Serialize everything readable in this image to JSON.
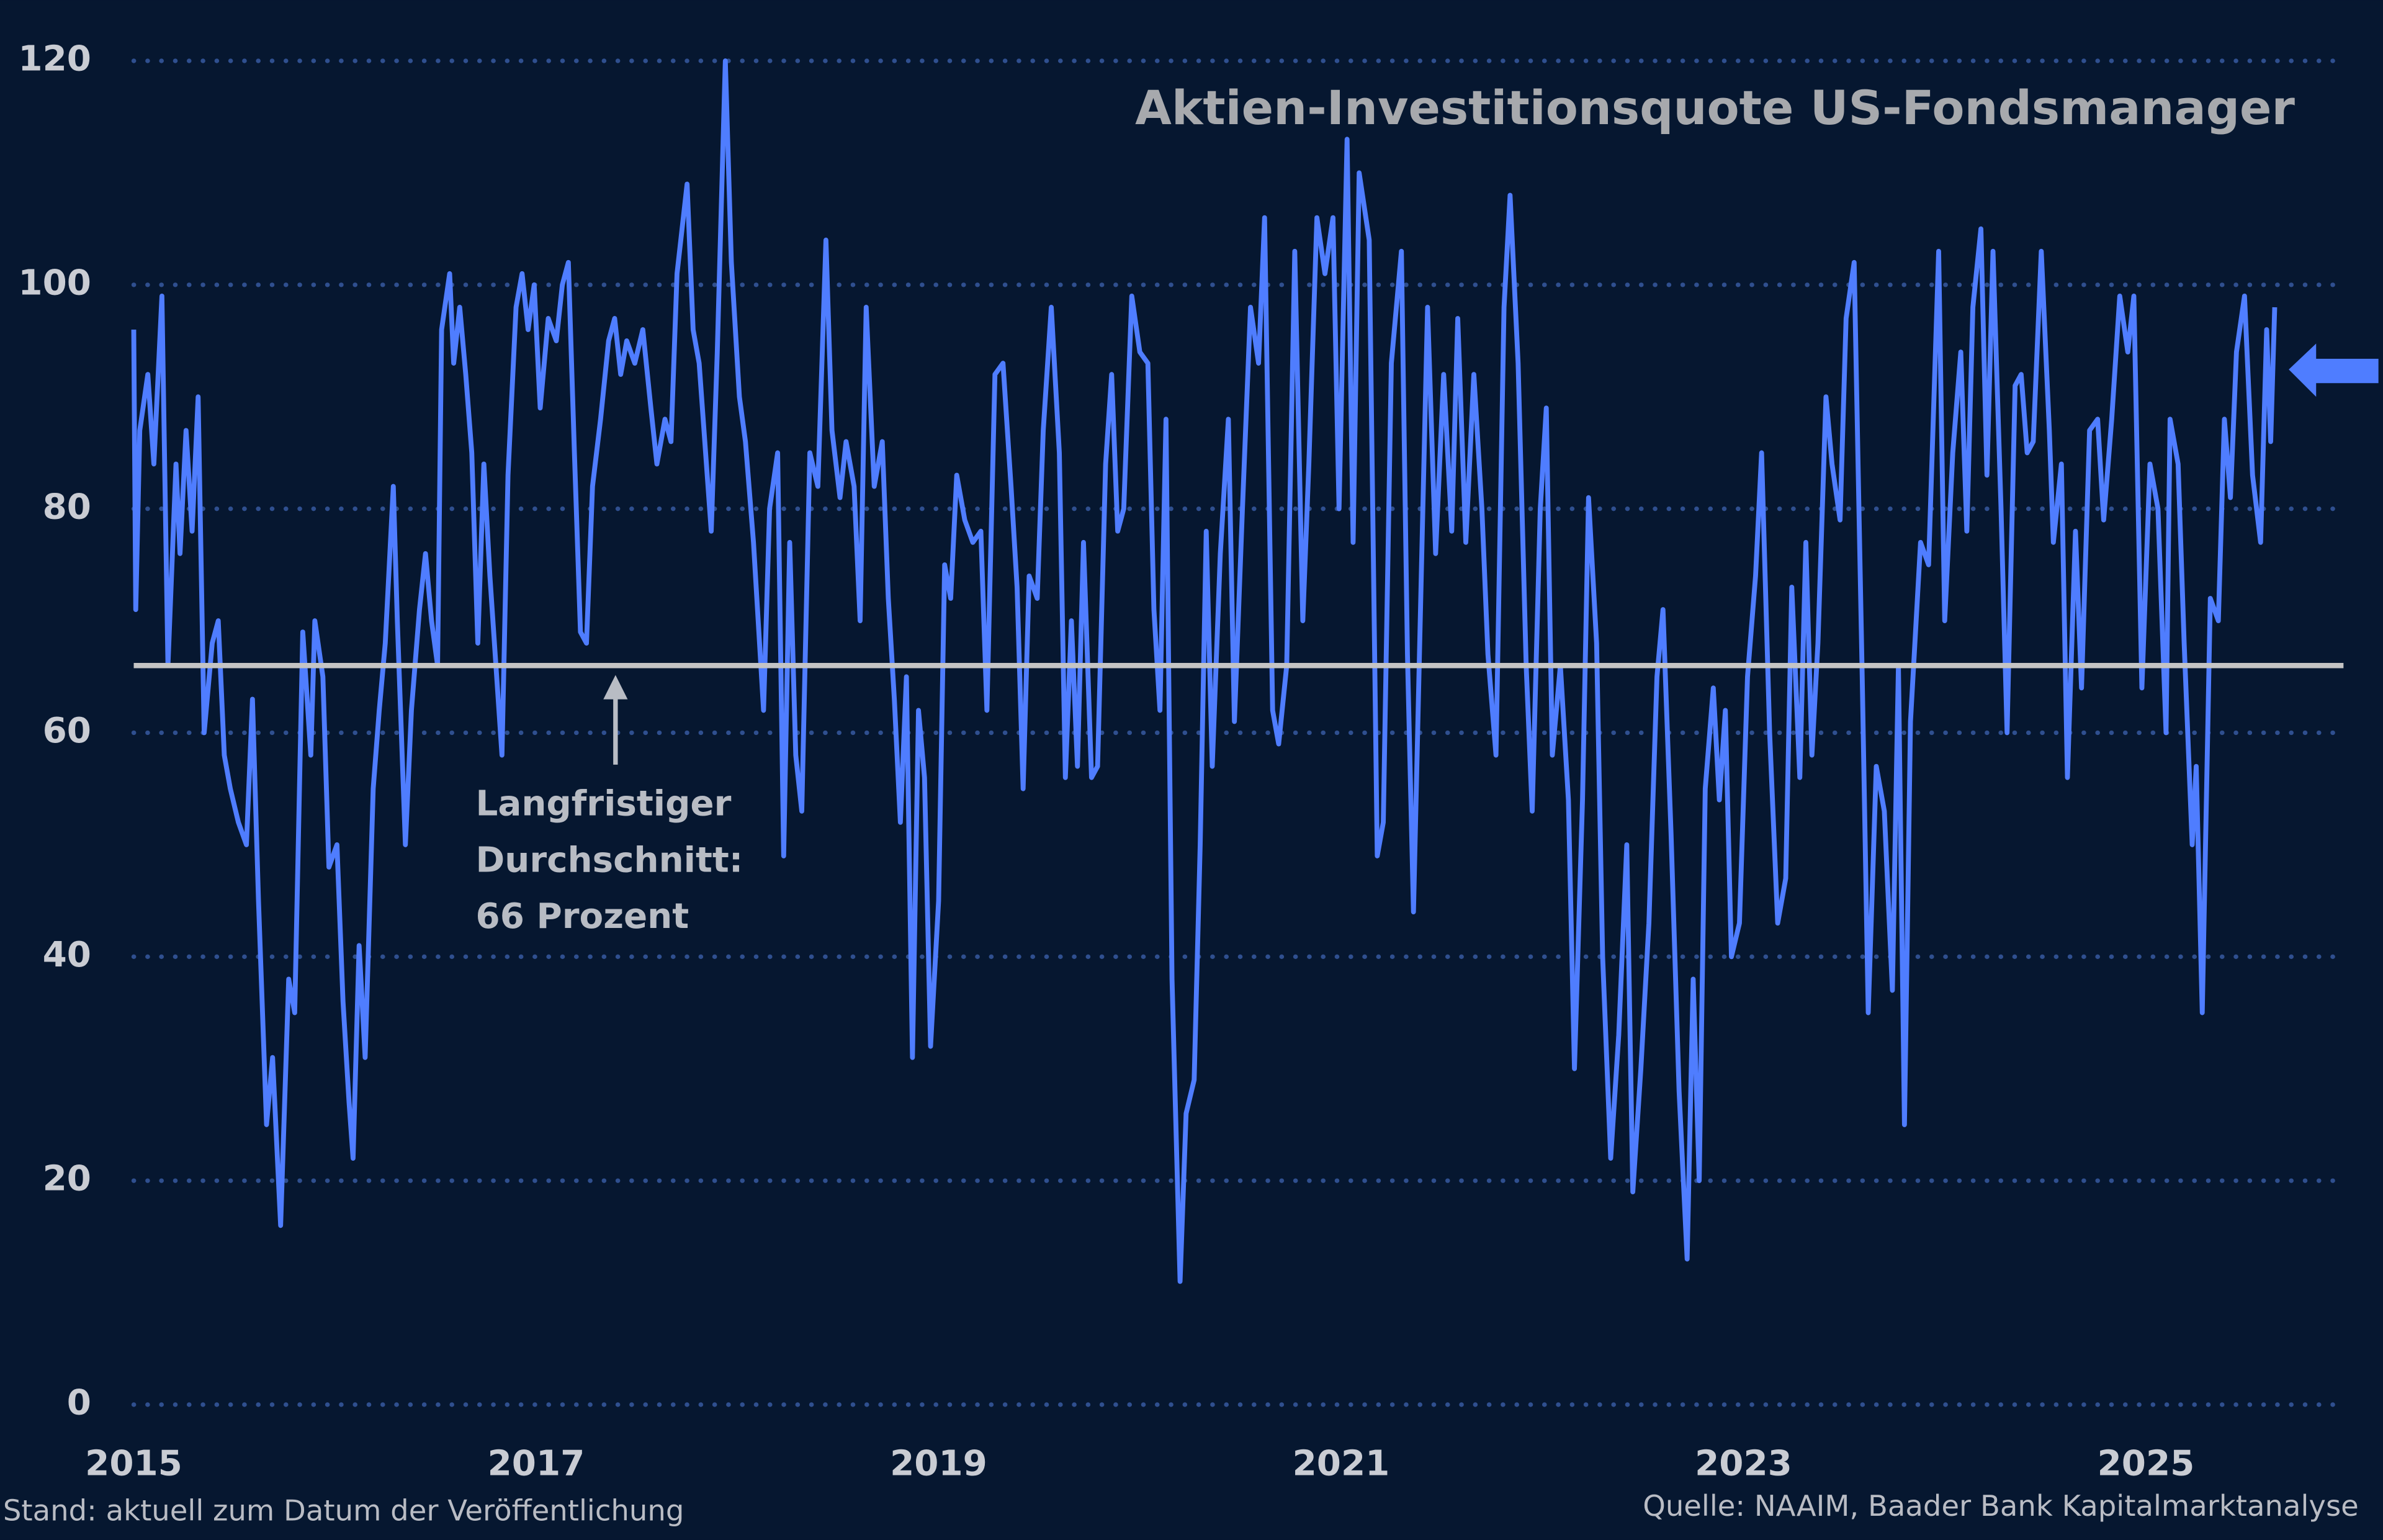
{
  "chart_data": {
    "type": "line",
    "title": "Aktien-Investitionsquote US-Fondsmanager",
    "annotation": [
      "Langfristiger",
      "Durchschnitt:",
      "66 Prozent"
    ],
    "average": 66,
    "footnote_left": "Stand: aktuell zum Datum der Veröffentlichung",
    "footnote_right": "Quelle: NAAIM, Baader Bank Kapitalmarktanalyse",
    "xlim": [
      2015,
      2026
    ],
    "xticks": [
      2015,
      2017,
      2019,
      2021,
      2023,
      2025
    ],
    "ylim": [
      0,
      120
    ],
    "yticks": [
      0,
      20,
      40,
      60,
      80,
      100,
      120
    ],
    "grid": true,
    "series": [
      {
        "color": "#4f7dff",
        "x": [
          2015.0,
          2015.01,
          2015.03,
          2015.07,
          2015.1,
          2015.14,
          2015.17,
          2015.21,
          2015.23,
          2015.26,
          2015.29,
          2015.32,
          2015.35,
          2015.39,
          2015.42,
          2015.45,
          2015.48,
          2015.52,
          2015.56,
          2015.59,
          2015.62,
          2015.66,
          2015.69,
          2015.73,
          2015.77,
          2015.8,
          2015.84,
          2015.88,
          2015.9,
          2015.94,
          2015.97,
          2016.01,
          2016.04,
          2016.07,
          2016.09,
          2016.12,
          2016.15,
          2016.19,
          2016.22,
          2016.25,
          2016.29,
          2016.31,
          2016.35,
          2016.38,
          2016.42,
          2016.45,
          2016.48,
          2016.51,
          2016.53,
          2016.57,
          2016.59,
          2016.62,
          2016.65,
          2016.68,
          2016.71,
          2016.74,
          2016.77,
          2016.8,
          2016.83,
          2016.86,
          2016.9,
          2016.93,
          2016.96,
          2016.99,
          2017.02,
          2017.06,
          2017.1,
          2017.13,
          2017.16,
          2017.19,
          2017.22,
          2017.25,
          2017.28,
          2017.32,
          2017.36,
          2017.39,
          2017.42,
          2017.45,
          2017.49,
          2017.53,
          2017.57,
          2017.6,
          2017.64,
          2017.67,
          2017.7,
          2017.75,
          2017.78,
          2017.81,
          2017.85,
          2017.87,
          2017.9,
          2017.94,
          2017.97,
          2018.01,
          2018.04,
          2018.08,
          2018.13,
          2018.16,
          2018.2,
          2018.23,
          2018.26,
          2018.29,
          2018.32,
          2018.36,
          2018.4,
          2018.44,
          2018.47,
          2018.51,
          2018.54,
          2018.58,
          2018.61,
          2018.64,
          2018.68,
          2018.72,
          2018.75,
          2018.78,
          2018.81,
          2018.84,
          2018.87,
          2018.9,
          2018.93,
          2018.96,
          2019.0,
          2019.03,
          2019.06,
          2019.09,
          2019.13,
          2019.17,
          2019.21,
          2019.24,
          2019.28,
          2019.32,
          2019.36,
          2019.39,
          2019.42,
          2019.45,
          2019.49,
          2019.52,
          2019.56,
          2019.6,
          2019.63,
          2019.66,
          2019.69,
          2019.72,
          2019.76,
          2019.79,
          2019.83,
          2019.86,
          2019.89,
          2019.92,
          2019.96,
          2020.0,
          2020.04,
          2020.07,
          2020.1,
          2020.13,
          2020.16,
          2020.2,
          2020.23,
          2020.27,
          2020.3,
          2020.33,
          2020.36,
          2020.4,
          2020.44,
          2020.47,
          2020.51,
          2020.55,
          2020.59,
          2020.62,
          2020.66,
          2020.69,
          2020.73,
          2020.77,
          2020.81,
          2020.84,
          2020.88,
          2020.92,
          2020.96,
          2020.99,
          2021.03,
          2021.06,
          2021.09,
          2021.14,
          2021.18,
          2021.21,
          2021.25,
          2021.3,
          2021.33,
          2021.36,
          2021.4,
          2021.43,
          2021.47,
          2021.51,
          2021.55,
          2021.58,
          2021.62,
          2021.66,
          2021.7,
          2021.73,
          2021.77,
          2021.81,
          2021.84,
          2021.88,
          2021.92,
          2021.95,
          2021.99,
          2022.02,
          2022.05,
          2022.09,
          2022.13,
          2022.16,
          2022.2,
          2022.23,
          2022.27,
          2022.3,
          2022.34,
          2022.38,
          2022.42,
          2022.45,
          2022.49,
          2022.53,
          2022.57,
          2022.6,
          2022.64,
          2022.68,
          2022.72,
          2022.75,
          2022.78,
          2022.81,
          2022.85,
          2022.88,
          2022.91,
          2022.94,
          2022.98,
          2023.02,
          2023.06,
          2023.09,
          2023.13,
          2023.17,
          2023.21,
          2023.24,
          2023.28,
          2023.31,
          2023.34,
          2023.37,
          2023.41,
          2023.44,
          2023.48,
          2023.51,
          2023.55,
          2023.59,
          2023.62,
          2023.66,
          2023.7,
          2023.74,
          2023.77,
          2023.8,
          2023.83,
          2023.88,
          2023.92,
          2023.97,
          2024.0,
          2024.04,
          2024.08,
          2024.11,
          2024.14,
          2024.18,
          2024.21,
          2024.24,
          2024.28,
          2024.31,
          2024.35,
          2024.38,
          2024.41,
          2024.44,
          2024.48,
          2024.52,
          2024.54,
          2024.58,
          2024.61,
          2024.65,
          2024.68,
          2024.72,
          2024.76,
          2024.79,
          2024.83,
          2024.87,
          2024.91,
          2024.94,
          2024.98,
          2025.02,
          2025.06,
          2025.1,
          2025.12,
          2025.16,
          2025.19,
          2025.23,
          2025.25,
          2025.28,
          2025.32,
          2025.36,
          2025.39,
          2025.42,
          2025.45,
          2025.49,
          2025.53,
          2025.57,
          2025.6,
          2025.62,
          2025.64
        ],
        "values": [
          96,
          71,
          87,
          92,
          84,
          99,
          66,
          84,
          76,
          87,
          78,
          90,
          60,
          68,
          70,
          58,
          55,
          52,
          50,
          63,
          45,
          25,
          31,
          16,
          38,
          35,
          69,
          58,
          70,
          65,
          48,
          50,
          36,
          27,
          22,
          41,
          31,
          55,
          62,
          68,
          82,
          70,
          50,
          62,
          71,
          76,
          70,
          66,
          96,
          101,
          93,
          98,
          92,
          85,
          68,
          84,
          74,
          66,
          58,
          83,
          98,
          101,
          96,
          100,
          89,
          97,
          95,
          100,
          102,
          85,
          69,
          68,
          82,
          88,
          95,
          97,
          92,
          95,
          93,
          96,
          89,
          84,
          88,
          86,
          101,
          109,
          96,
          93,
          83,
          78,
          94,
          120,
          102,
          90,
          86,
          77,
          62,
          80,
          85,
          49,
          77,
          58,
          53,
          85,
          82,
          104,
          87,
          81,
          86,
          82,
          70,
          98,
          82,
          86,
          72,
          63,
          52,
          65,
          31,
          62,
          56,
          32,
          45,
          75,
          72,
          83,
          79,
          77,
          78,
          62,
          92,
          93,
          82,
          73,
          55,
          74,
          72,
          87,
          98,
          85,
          56,
          70,
          57,
          77,
          56,
          57,
          84,
          92,
          78,
          80,
          99,
          94,
          93,
          71,
          62,
          88,
          38,
          11,
          26,
          29,
          50,
          78,
          57,
          76,
          88,
          61,
          80,
          98,
          93,
          106,
          62,
          59,
          66,
          103,
          70,
          84,
          106,
          101,
          106,
          80,
          113,
          77,
          110,
          104,
          49,
          52,
          93,
          103,
          67,
          44,
          75,
          98,
          76,
          92,
          78,
          97,
          77,
          92,
          80,
          67,
          58,
          98,
          108,
          93,
          66,
          53,
          80,
          89,
          58,
          66,
          54,
          30,
          54,
          81,
          68,
          40,
          22,
          33,
          50,
          19,
          30,
          43,
          65,
          71,
          51,
          28,
          13,
          38,
          20,
          55,
          64,
          54,
          62,
          40,
          43,
          65,
          74,
          85,
          60,
          43,
          47,
          73,
          56,
          77,
          58,
          68,
          90,
          84,
          79,
          97,
          102,
          65,
          35,
          57,
          53,
          37,
          66,
          25,
          61,
          77,
          75,
          103,
          70,
          85,
          94,
          78,
          98,
          105,
          83,
          103,
          80,
          60,
          91,
          92,
          85,
          86,
          103,
          87,
          77,
          84,
          56,
          78,
          64,
          87,
          88,
          79,
          88,
          99,
          94,
          99,
          64,
          84,
          80,
          60,
          88,
          84,
          68,
          50,
          57,
          35,
          72,
          70,
          88,
          81,
          94,
          99,
          83,
          77,
          96,
          86,
          98
        ]
      }
    ]
  }
}
